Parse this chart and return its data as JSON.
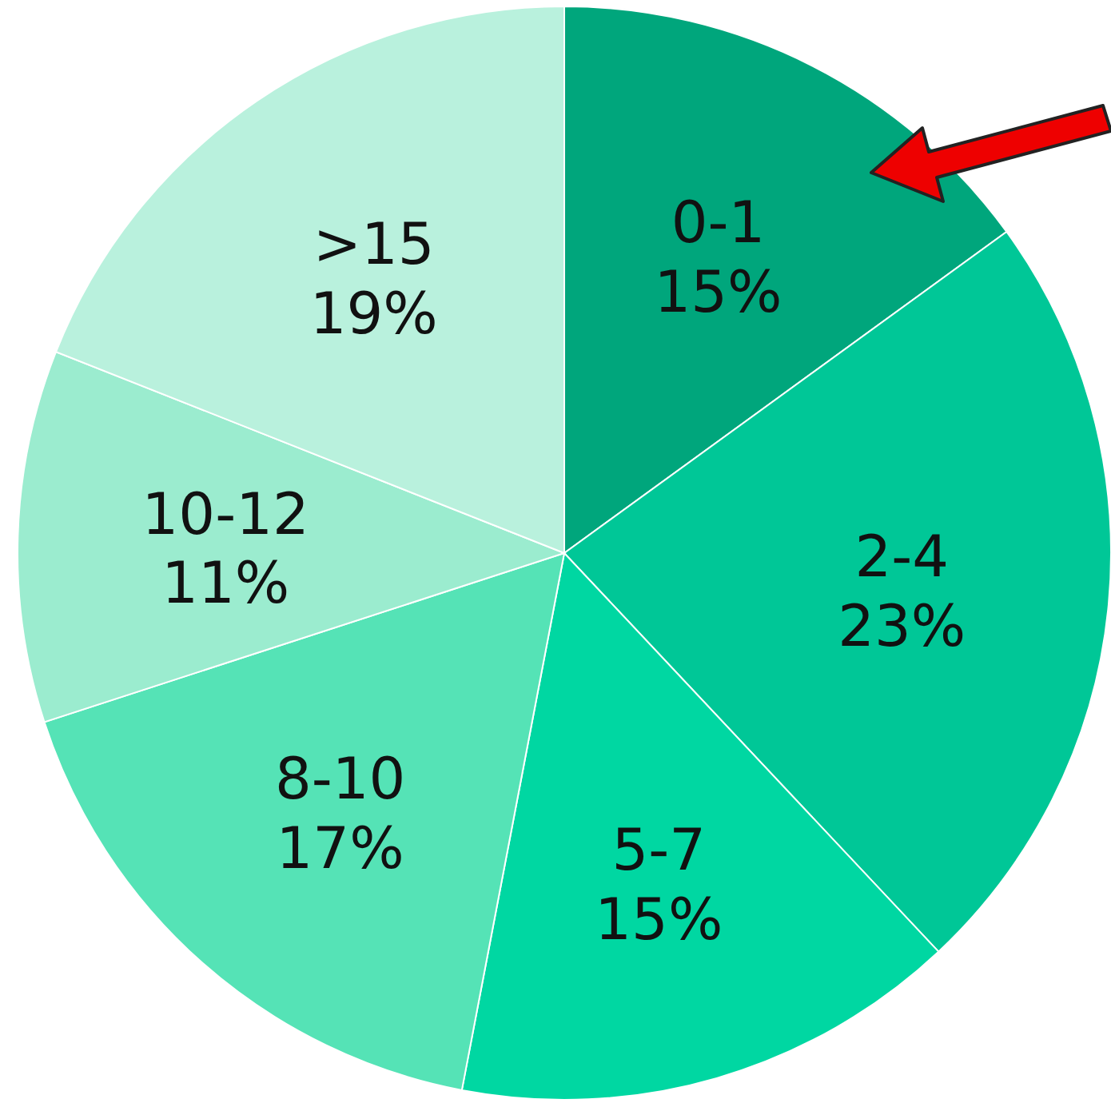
{
  "chart_data": {
    "type": "pie",
    "categories": [
      "0-1",
      "2-4",
      "5-7",
      "8-10",
      "10-12",
      ">15"
    ],
    "values": [
      15,
      23,
      15,
      17,
      11,
      19
    ],
    "colors": [
      "#00a67c",
      "#00c797",
      "#00d7a2",
      "#55e3b6",
      "#9beccf",
      "#b9f1dd"
    ],
    "value_labels": [
      "15%",
      "23%",
      "15%",
      "17%",
      "11%",
      "19%"
    ]
  }
}
